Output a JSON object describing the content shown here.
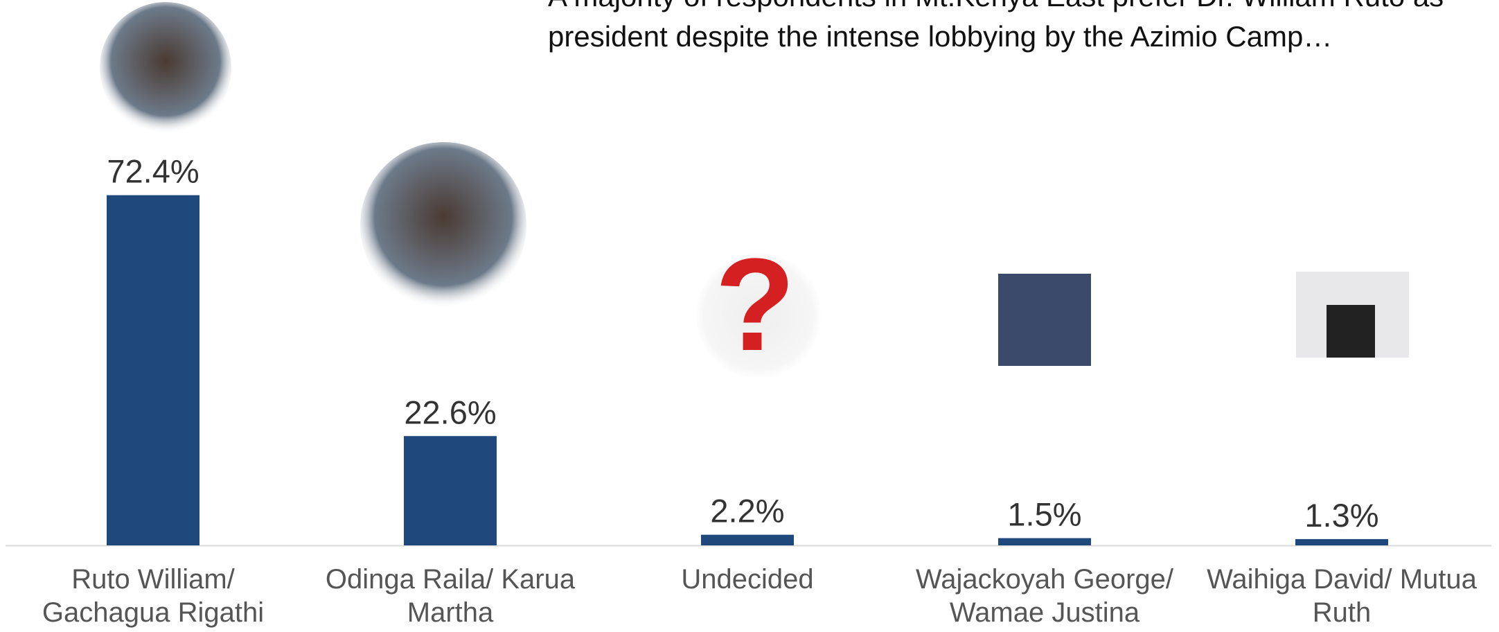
{
  "chart_data": {
    "type": "bar",
    "title": "A majority of respondents in Mt.Kenya East prefer Dr. William Ruto as president despite the intense lobbying by the Azimio Camp…",
    "categories": [
      "Ruto William/ Gachagua Rigathi",
      "Odinga Raila/ Karua Martha",
      "Undecided",
      "Wajackoyah George/ Wamae Justina",
      "Waihiga David/ Mutua Ruth"
    ],
    "values": [
      72.4,
      22.6,
      2.2,
      1.5,
      1.3
    ],
    "value_labels": [
      "72.4%",
      "22.6%",
      "2.2%",
      "1.5%",
      "1.3%"
    ],
    "color": "#1f497d"
  }
}
